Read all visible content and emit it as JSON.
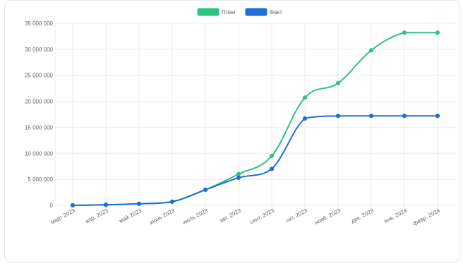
{
  "page": {
    "title": ""
  },
  "colors": {
    "plan": "#2ec47f",
    "fact": "#1f6fd6",
    "grid": "#ececec",
    "text": "#666666"
  },
  "chart_data": {
    "type": "line",
    "title": "",
    "xlabel": "",
    "ylabel": "",
    "categories": [
      "март 2023",
      "апр. 2023",
      "май 2023",
      "июнь 2023",
      "июль 2023",
      "авг. 2023",
      "сент. 2023",
      "окт. 2023",
      "нояб. 2023",
      "дек. 2023",
      "янв. 2024",
      "февр. 2024"
    ],
    "y_ticks": [
      "0",
      "5 000 000",
      "10 000 000",
      "15 000 000",
      "20 000 000",
      "25 000 000",
      "30 000 000",
      "35 000 000"
    ],
    "ylim": [
      0,
      35000000
    ],
    "grid": true,
    "legend_position": "top",
    "series": [
      {
        "name": "План",
        "color": "#2ec47f",
        "values": [
          0,
          100000,
          300000,
          700000,
          3000000,
          6000000,
          9500000,
          20700000,
          23500000,
          29800000,
          33200000,
          33200000
        ]
      },
      {
        "name": "Факт",
        "color": "#1f6fd6",
        "values": [
          0,
          100000,
          300000,
          700000,
          3000000,
          5300000,
          7000000,
          16700000,
          17200000,
          17200000,
          17200000,
          17200000
        ]
      }
    ]
  }
}
